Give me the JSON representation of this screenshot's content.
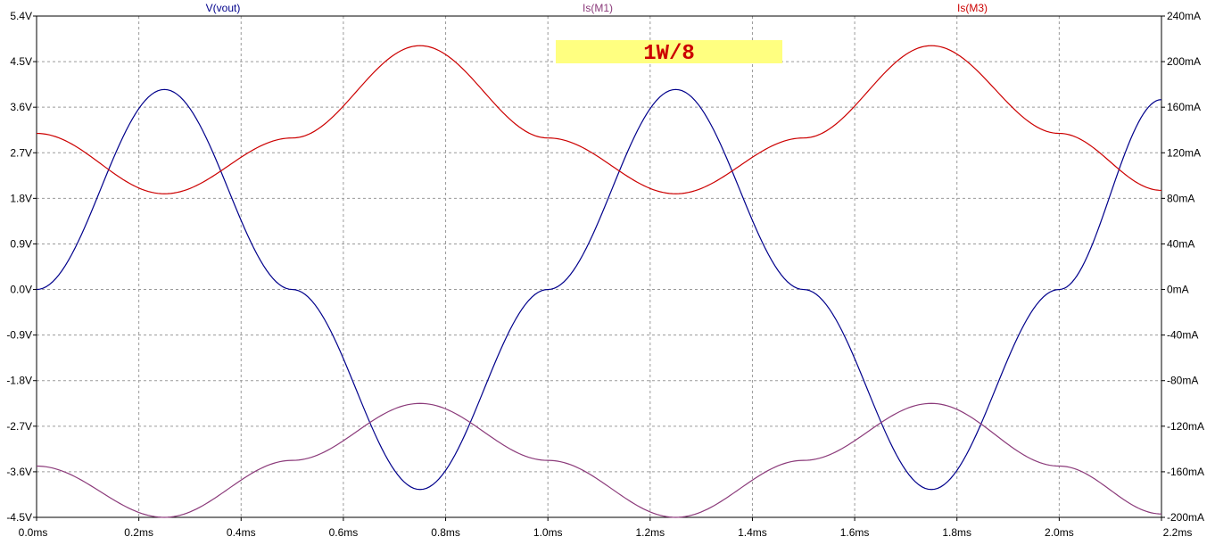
{
  "chart_data": {
    "type": "line",
    "annotation": {
      "text": "1W/8",
      "background": "#ffff80",
      "color": "#cc0000"
    },
    "xlim": [
      0,
      2.2
    ],
    "x_ticks": [
      "0.0ms",
      "0.2ms",
      "0.4ms",
      "0.6ms",
      "0.8ms",
      "1.0ms",
      "1.2ms",
      "1.4ms",
      "1.6ms",
      "1.8ms",
      "2.0ms",
      "2.2ms"
    ],
    "left_axis": {
      "ylim": [
        -4.5,
        5.4
      ],
      "ticks": [
        "5.4V",
        "4.5V",
        "3.6V",
        "2.7V",
        "1.8V",
        "0.9V",
        "0.0V",
        "-0.9V",
        "-1.8V",
        "-2.7V",
        "-3.6V",
        "-4.5V"
      ]
    },
    "right_axis": {
      "ylim": [
        -200,
        240
      ],
      "ticks": [
        "240mA",
        "200mA",
        "160mA",
        "120mA",
        "80mA",
        "40mA",
        "0mA",
        "-40mA",
        "-80mA",
        "-120mA",
        "-160mA",
        "-200mA"
      ]
    },
    "grid": true,
    "series": [
      {
        "name": "V(vout)",
        "axis": "left",
        "color": "#00008b",
        "x": [
          0.0,
          0.25,
          0.5,
          0.75,
          1.0,
          1.25,
          1.5,
          1.75,
          2.0,
          2.2
        ],
        "y": [
          0.0,
          3.95,
          0.0,
          -3.95,
          0.0,
          3.95,
          0.0,
          -3.95,
          0.0,
          3.75
        ]
      },
      {
        "name": "Is(M1)",
        "axis": "right",
        "color": "#8b3a7a",
        "x": [
          0.0,
          0.25,
          0.5,
          0.75,
          1.0,
          1.25,
          1.5,
          1.75,
          2.0,
          2.2
        ],
        "y": [
          -155,
          -200,
          -150,
          -100,
          -150,
          -200,
          -150,
          -100,
          -155,
          -197
        ]
      },
      {
        "name": "Is(M3)",
        "axis": "right",
        "color": "#cc0000",
        "x": [
          0.0,
          0.25,
          0.5,
          0.75,
          1.0,
          1.25,
          1.5,
          1.75,
          2.0,
          2.2
        ],
        "y": [
          137,
          84,
          133,
          214,
          133,
          84,
          133,
          214,
          137,
          87
        ]
      }
    ]
  }
}
